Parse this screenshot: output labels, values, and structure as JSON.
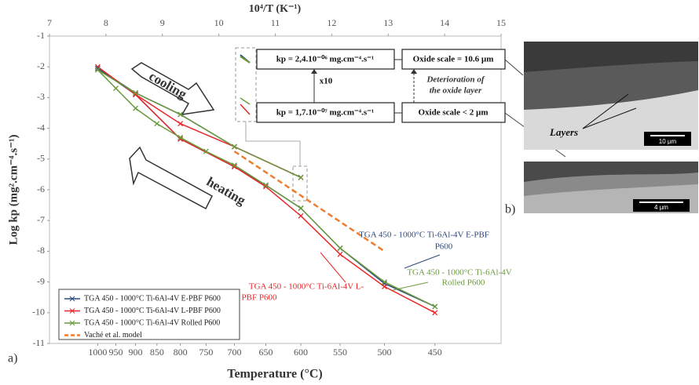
{
  "chart_data": {
    "type": "line",
    "x_scale": "inverse-kelvin",
    "x2_title": "10⁴/T (K⁻¹)",
    "x_title": "Temperature (°C)",
    "y_title": "Log kp (mg².cm⁻⁴.s⁻¹)",
    "x2lim": [
      7,
      15
    ],
    "x2ticks": [
      7,
      8,
      9,
      10,
      11,
      12,
      13,
      14,
      15
    ],
    "xticks": [
      1000,
      950,
      900,
      850,
      800,
      750,
      700,
      650,
      600,
      550,
      500,
      450
    ],
    "ylim": [
      -1,
      -11
    ],
    "yticks": [
      -1,
      -2,
      -3,
      -4,
      -5,
      -6,
      -7,
      -8,
      -9,
      -10,
      -11
    ],
    "series": [
      {
        "name": "TGA 450 - 1000°C Ti-6Al-4V E-PBF P600",
        "color": "#2e4a7d",
        "x": [
          450,
          500,
          550,
          600,
          650,
          700,
          800,
          900,
          1000,
          900,
          800,
          700,
          600
        ],
        "values": [
          -9.8,
          -9.05,
          -7.9,
          -6.6,
          -5.85,
          -5.25,
          -4.35,
          -2.9,
          -2.05,
          -2.85,
          -3.55,
          -4.6,
          -5.6
        ]
      },
      {
        "name": "TGA 450 - 1000°C Ti-6Al-4V L-PBF P600",
        "color": "#e8262a",
        "x": [
          450,
          500,
          550,
          600,
          650,
          700,
          800,
          900,
          1000,
          900,
          800,
          700,
          600
        ],
        "values": [
          -10.0,
          -9.15,
          -8.1,
          -6.85,
          -5.9,
          -5.25,
          -4.35,
          -2.9,
          -2.0,
          -2.9,
          -3.85,
          -4.6,
          -5.6
        ]
      },
      {
        "name": "TGA 450 - 1000°C Ti-6Al-4V Rolled P600",
        "color": "#6a9a3c",
        "x": [
          450,
          500,
          550,
          600,
          650,
          700,
          750,
          800,
          850,
          900,
          950,
          1000,
          900,
          800,
          700,
          600
        ],
        "values": [
          -9.8,
          -9.0,
          -7.9,
          -6.6,
          -5.85,
          -5.2,
          -4.75,
          -4.3,
          -3.85,
          -3.35,
          -2.7,
          -2.1,
          -2.85,
          -3.55,
          -4.6,
          -5.6
        ]
      },
      {
        "name": "Vaché et al. model",
        "color": "#ed7d31",
        "dashed": true,
        "x": [
          700,
          500
        ],
        "values": [
          -4.75,
          -8.0
        ]
      }
    ],
    "legend": "bottom-left",
    "series_labels": [
      [
        "TGA 450 - 1000°C Ti-6Al-4V  E-PBF",
        "P600"
      ],
      [
        "TGA 450 - 1000°C Ti-6Al-4V  L-",
        "PBF P600"
      ],
      [
        "TGA 450 - 1000°C Ti-6Al-4V",
        "Rolled P600"
      ]
    ],
    "arrows": [
      "cooling",
      "heating"
    ],
    "kp_high": "kp = 2,4.10⁻⁰⁶ mg.cm⁻⁴.s⁻¹",
    "kp_low": "kp = 1,7.10⁻⁰⁷ mg.cm⁻⁴.s⁻¹",
    "factor": "x10",
    "oxide_high": "Oxide scale = 10.6 µm",
    "oxide_low": "Oxide scale < 2 µm",
    "deterioration": [
      "Deterioration of",
      "the oxide layer"
    ],
    "layers": "Layers",
    "scale_1": "10 µm",
    "scale_2": "4 µm",
    "panel_a": "a)",
    "panel_b": "b)"
  }
}
